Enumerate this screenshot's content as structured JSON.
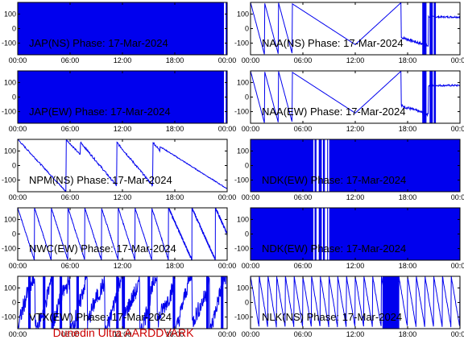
{
  "colors": {
    "trace": "#0000ee",
    "frame": "#000000",
    "footer": "#cc0000",
    "background": "#ffffff"
  },
  "footer_text": "Dunedin Ultra AARDDVARK",
  "chart_data": [
    {
      "type": "line",
      "title": "JAP(NS) Phase: 17-Mar-2024",
      "x_ticks": [
        "00:00",
        "06:00",
        "12:00",
        "18:00",
        "00:00"
      ],
      "y_ticks": [
        "100",
        "0",
        "-100"
      ],
      "ylim": [
        -180,
        180
      ],
      "pattern": "solid"
    },
    {
      "type": "line",
      "title": "NAA(NS) Phase: 17-Mar-2024",
      "x_ticks": [
        "00:00",
        "06:00",
        "12:00",
        "18:00",
        "00:00"
      ],
      "y_ticks": [
        "100",
        "0",
        "-100"
      ],
      "ylim": [
        -180,
        180
      ],
      "pattern": "naa"
    },
    {
      "type": "line",
      "title": "JAP(EW) Phase: 17-Mar-2024",
      "x_ticks": [
        "00:00",
        "06:00",
        "12:00",
        "18:00",
        "00:00"
      ],
      "y_ticks": [
        "100",
        "0",
        "-100"
      ],
      "ylim": [
        -180,
        180
      ],
      "pattern": "solid"
    },
    {
      "type": "line",
      "title": "NAA(EW) Phase: 17-Mar-2024",
      "x_ticks": [
        "00:00",
        "06:00",
        "12:00",
        "18:00",
        "00:00"
      ],
      "y_ticks": [
        "100",
        "0",
        "-100"
      ],
      "ylim": [
        -180,
        180
      ],
      "pattern": "naa"
    },
    {
      "type": "line",
      "title": "NPM(NS) Phase: 17-Mar-2024",
      "x_ticks": [
        "00:00",
        "06:00",
        "12:00",
        "18:00",
        "00:00"
      ],
      "y_ticks": [
        "100",
        "0",
        "-100"
      ],
      "ylim": [
        -180,
        180
      ],
      "pattern": "npm"
    },
    {
      "type": "line",
      "title": "NDK(EW) Phase: 17-Mar-2024",
      "x_ticks": [
        "00:00",
        "06:00",
        "12:00",
        "18:00",
        "00:00"
      ],
      "y_ticks": [
        "100",
        "0",
        "-100"
      ],
      "ylim": [
        -180,
        180
      ],
      "pattern": "ndk"
    },
    {
      "type": "line",
      "title": "NWC(EW) Phase: 17-Mar-2024",
      "x_ticks": [
        "00:00",
        "06:00",
        "12:00",
        "18:00",
        "00:00"
      ],
      "y_ticks": [
        "100",
        "0",
        "-100"
      ],
      "ylim": [
        -180,
        180
      ],
      "pattern": "nwc"
    },
    {
      "type": "line",
      "title": "NDK(EW) Phase: 17-Mar-2024",
      "x_ticks": [
        "00:00",
        "06:00",
        "12:00",
        "18:00",
        "00:00"
      ],
      "y_ticks": [
        "100",
        "0",
        "-100"
      ],
      "ylim": [
        -180,
        180
      ],
      "pattern": "ndk"
    },
    {
      "type": "line",
      "title": "VTX(EW) Phase: 17-Mar-2024",
      "x_ticks": [
        "00:00",
        "06:00",
        "12:00",
        "18:00",
        "00:00"
      ],
      "y_ticks": [
        "100",
        "0",
        "-100"
      ],
      "ylim": [
        -180,
        180
      ],
      "pattern": "vtx"
    },
    {
      "type": "line",
      "title": "NLK(NS) Phase: 17-Mar-2024",
      "x_ticks": [
        "00:00",
        "06:00",
        "12:00",
        "18:00",
        "00:00"
      ],
      "y_ticks": [
        "100",
        "0",
        "-100"
      ],
      "ylim": [
        -180,
        180
      ],
      "pattern": "nlk"
    }
  ]
}
